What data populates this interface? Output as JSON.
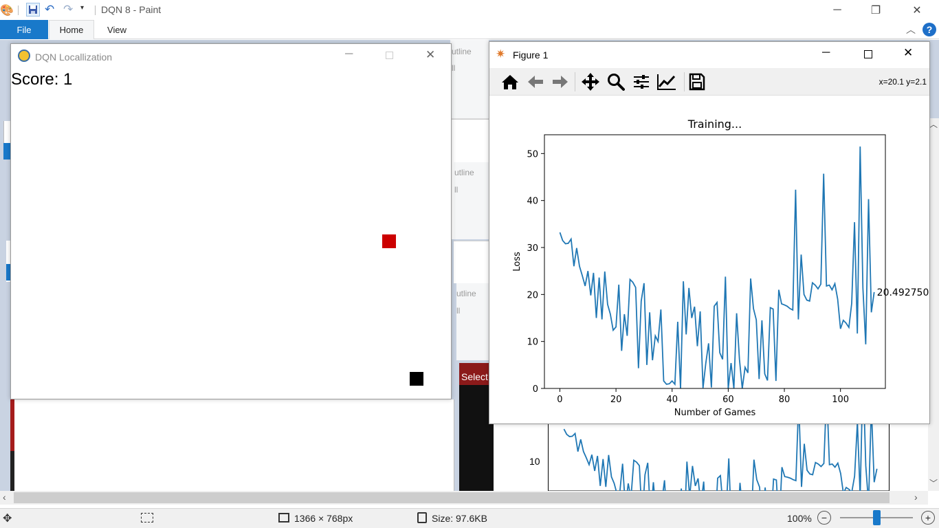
{
  "paint": {
    "title": "DQN 8 - Paint",
    "tabs": [
      "File",
      "Home",
      "View"
    ],
    "bg_labels": {
      "outline": "utline",
      "fill": "ll",
      "select": "Select"
    },
    "status": {
      "dimensions": "1366 × 768px",
      "size": "Size: 97.6KB",
      "zoom": "100%"
    },
    "bg_tick": "10"
  },
  "pygame": {
    "title": "DQN Locallization",
    "score": "Score: 1",
    "colors": {
      "agent": "#cc0000",
      "target": "#000000"
    }
  },
  "figure": {
    "title": "Figure 1",
    "coords": "x=20.1 y=2.1",
    "toolbar": [
      "home-icon",
      "back-icon",
      "forward-icon",
      "pan-icon",
      "zoom-icon",
      "configure-icon",
      "edit-axis-icon",
      "save-icon"
    ]
  },
  "chart_data": {
    "type": "line",
    "title": "Training...",
    "xlabel": "Number of Games",
    "ylabel": "Loss",
    "xlim": [
      -5.5,
      116
    ],
    "ylim": [
      0,
      54
    ],
    "xticks": [
      0,
      20,
      40,
      60,
      80,
      100
    ],
    "yticks": [
      0,
      10,
      20,
      30,
      40,
      50
    ],
    "annotation": "20.49275016",
    "color": "#1f77b4",
    "series": [
      {
        "values": [
          33.2,
          31.5,
          30.8,
          30.9,
          31.8,
          26,
          29.9,
          26,
          24,
          21.8,
          25,
          19.8,
          24.6,
          15,
          23.6,
          14.7,
          24.9,
          17.9,
          15.8,
          12.4,
          13.1,
          22.1,
          8,
          15.8,
          11.2,
          23.2,
          22.6,
          21.5,
          4.3,
          18.6,
          22.4,
          5,
          16.2,
          6,
          11.2,
          10,
          16.8,
          1.6,
          0.9,
          1,
          1.6,
          0.9,
          14.2,
          0,
          22.8,
          11.5,
          21.4,
          15,
          17.4,
          9,
          16.4,
          0.1,
          5.3,
          9.6,
          0.2,
          17.5,
          18.3,
          7.6,
          6.2,
          23.8,
          0,
          5.4,
          0,
          16,
          6.2,
          0,
          4.5,
          3.3,
          23.4,
          17,
          14.6,
          2,
          14.5,
          3.1,
          1.7,
          17.2,
          16.9,
          1.6,
          21,
          18,
          17.8,
          17.5,
          17,
          16.7,
          42.3,
          14.7,
          28.5,
          20,
          18.8,
          18.6,
          22.5,
          22,
          21.2,
          22.2,
          45.7,
          21.8,
          22,
          21,
          22.3,
          19,
          12.7,
          14.5,
          13.9,
          13,
          18.1,
          35.4,
          11.7,
          51.5,
          21.4,
          9.4,
          40.3,
          16.2,
          20.5
        ]
      }
    ]
  }
}
